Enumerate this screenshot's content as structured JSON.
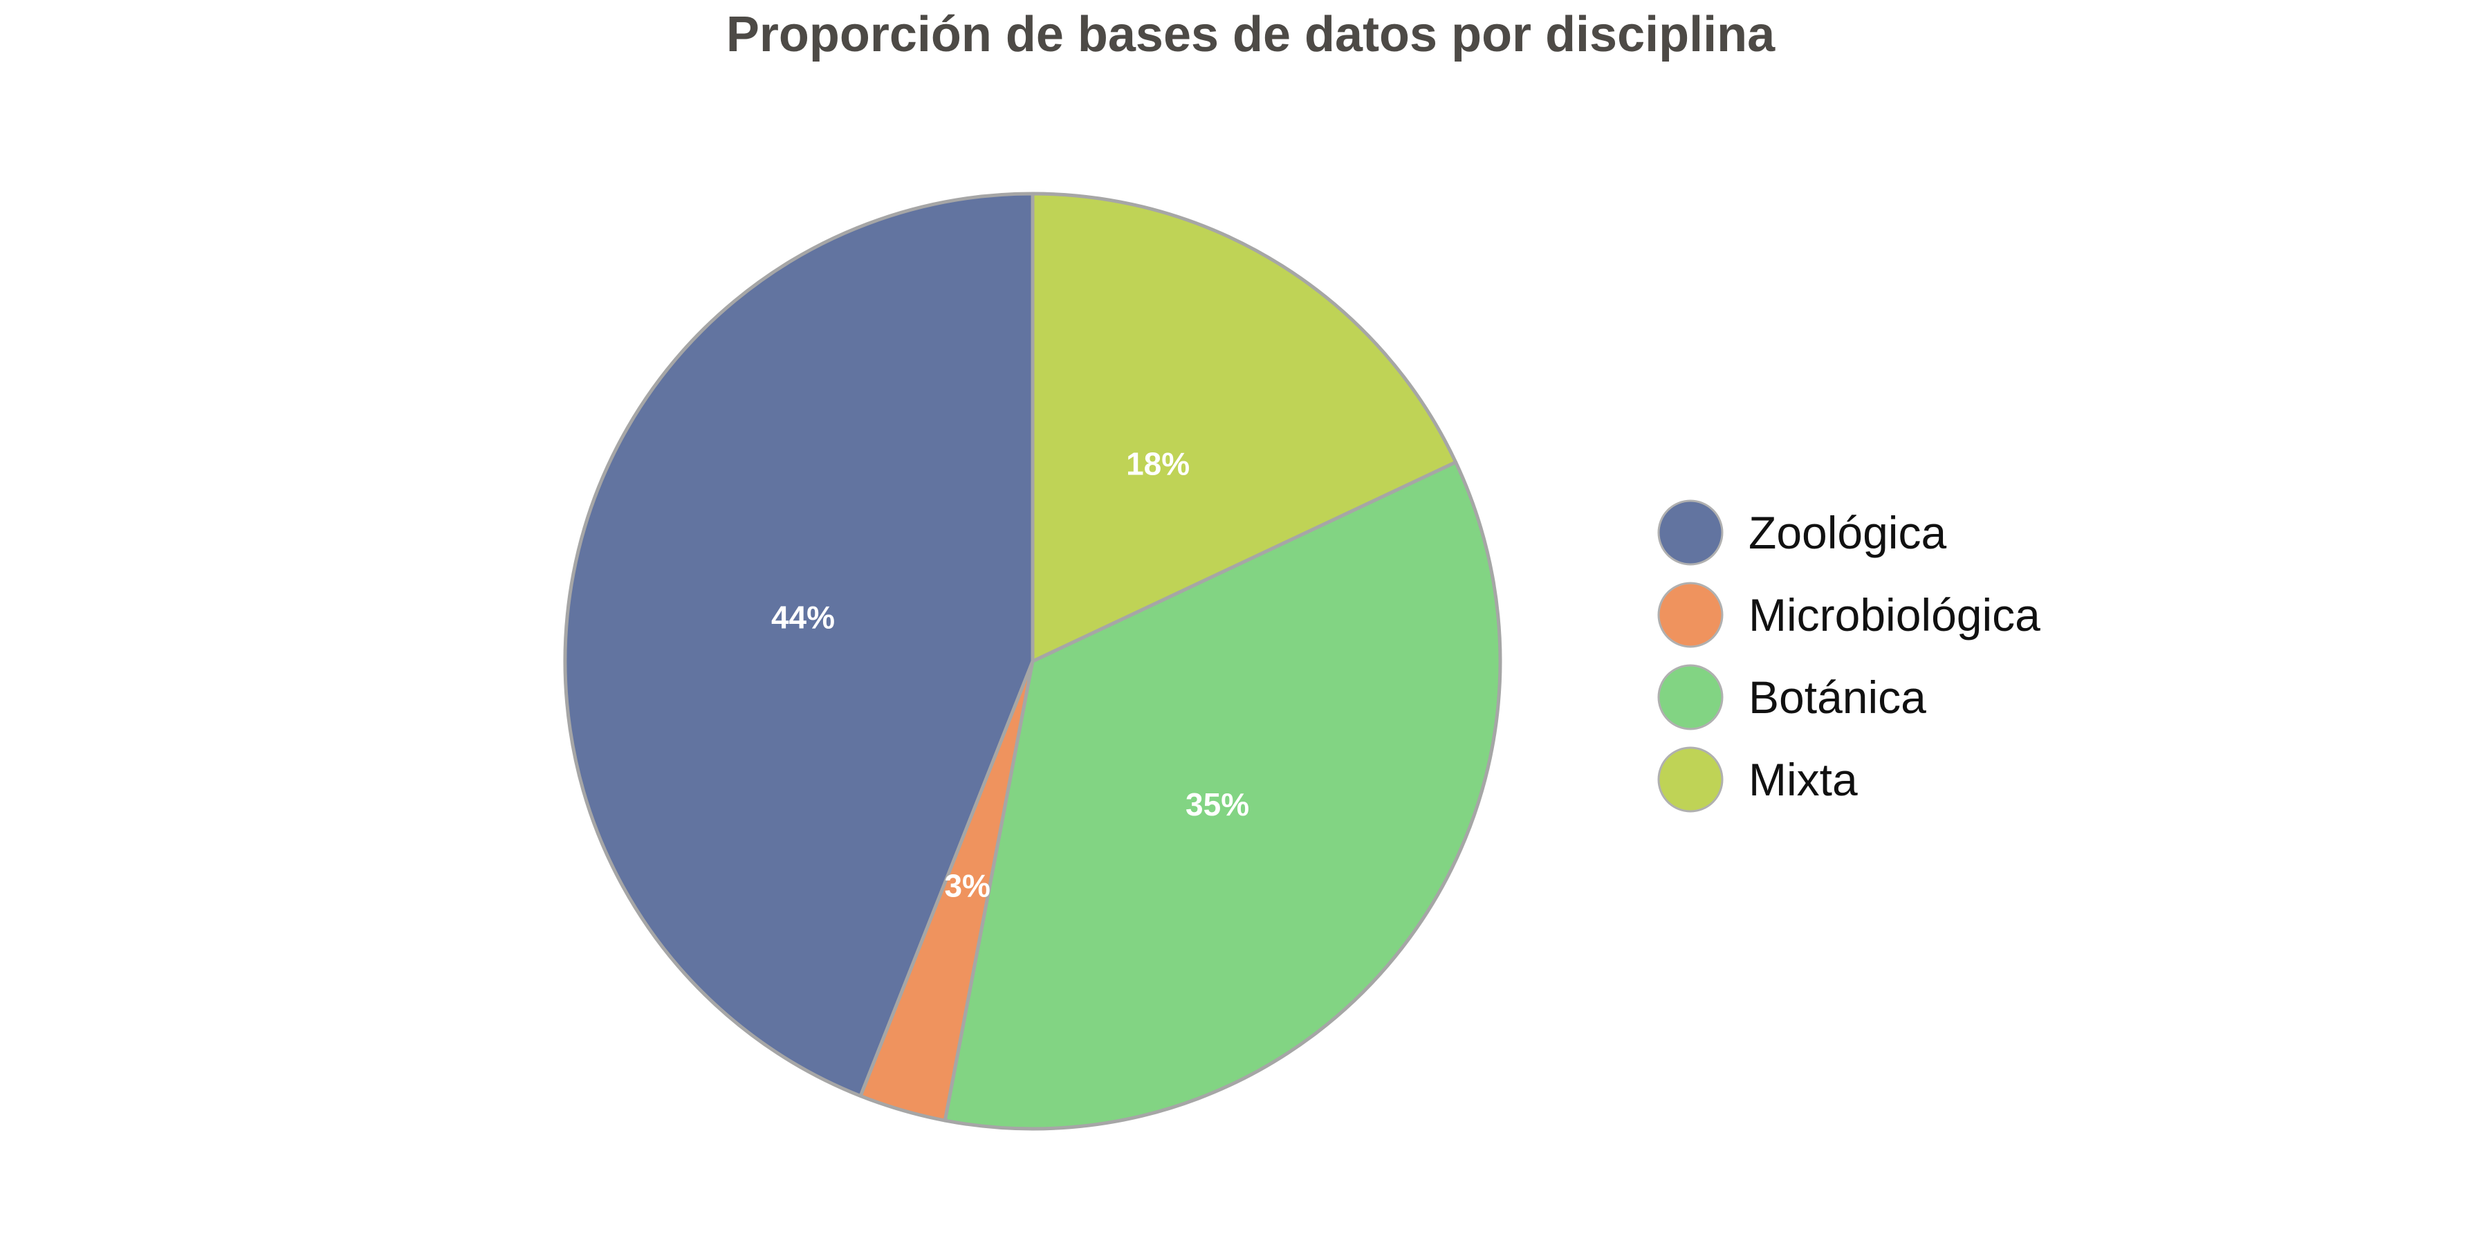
{
  "chart_data": {
    "type": "pie",
    "title": "Proporción de bases de datos por disciplina",
    "categories": [
      "Zoológica",
      "Microbiológica",
      "Botánica",
      "Mixta"
    ],
    "values": [
      44,
      3,
      35,
      18
    ],
    "value_labels": [
      "44%",
      "3%",
      "35%",
      "18%"
    ],
    "colors": [
      "#6274a0",
      "#ef935e",
      "#82d483",
      "#bfd356"
    ],
    "start_angle_deg": 90,
    "direction": "counterclockwise",
    "legend_position": "right"
  }
}
